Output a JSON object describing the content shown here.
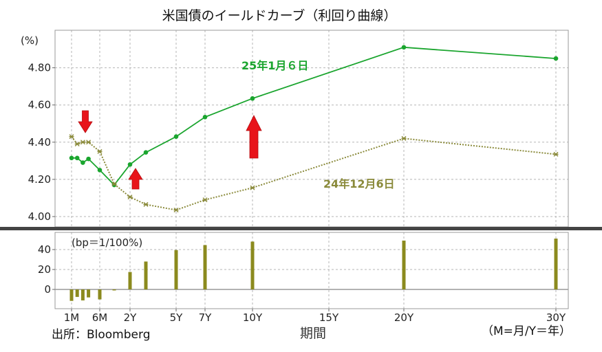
{
  "chart_data": [
    {
      "type": "line",
      "title": "米国債のイールドカーブ（利回り曲線）",
      "ylabel": "(%)",
      "xlabel": "期間",
      "ylim": [
        3.95,
        4.95
      ],
      "y_ticks": [
        4.0,
        4.2,
        4.4,
        4.6,
        4.8
      ],
      "y_tick_labels": [
        "4.00",
        "4.20",
        "4.40",
        "4.60",
        "4.80"
      ],
      "x_unit": "months",
      "grid": true,
      "series": [
        {
          "name": "25年1月６日",
          "color": "#1aa52e",
          "style": "solid",
          "x": [
            1,
            2,
            3,
            4,
            6,
            12,
            24,
            36,
            60,
            84,
            120,
            240,
            360
          ],
          "values": [
            4.315,
            4.315,
            4.29,
            4.31,
            4.25,
            4.17,
            4.28,
            4.345,
            4.43,
            4.535,
            4.635,
            4.91,
            4.85
          ]
        },
        {
          "name": "24年12月6日",
          "color": "#8a8a3a",
          "style": "dotted",
          "x": [
            1,
            2,
            3,
            4,
            6,
            12,
            24,
            36,
            60,
            84,
            120,
            240,
            360
          ],
          "values": [
            4.43,
            4.39,
            4.4,
            4.4,
            4.35,
            4.175,
            4.105,
            4.065,
            4.035,
            4.09,
            4.155,
            4.42,
            4.335
          ]
        }
      ],
      "annotations": [
        {
          "type": "down-arrow",
          "color": "#e8141a",
          "near": "3M"
        },
        {
          "type": "up-arrow",
          "color": "#e8141a",
          "near": "2Y"
        },
        {
          "type": "up-arrow",
          "color": "#e8141a",
          "near": "10Y"
        }
      ]
    },
    {
      "type": "bar",
      "title": "(bp＝1/100%)",
      "ylim": [
        -12,
        55
      ],
      "y_ticks": [
        0,
        20,
        40
      ],
      "y_tick_labels": [
        "0",
        "20",
        "40"
      ],
      "x_unit": "months",
      "color": "#8b8a1e",
      "x": [
        1,
        2,
        3,
        4,
        6,
        12,
        24,
        36,
        60,
        84,
        120,
        240,
        360
      ],
      "values": [
        -11.5,
        -7.5,
        -11,
        -8,
        -10,
        -1,
        17.5,
        28,
        39.5,
        44.5,
        48,
        49,
        51
      ],
      "x_ticks": [
        1,
        6,
        24,
        60,
        84,
        120,
        180,
        240,
        360
      ],
      "x_tick_labels": [
        "1M",
        "6M",
        "2Y",
        "5Y",
        "7Y",
        "10Y",
        "15Y",
        "20Y",
        "30Y"
      ]
    }
  ],
  "source": "出所：Bloomberg",
  "legend_note": "（M=月/Y＝年）"
}
